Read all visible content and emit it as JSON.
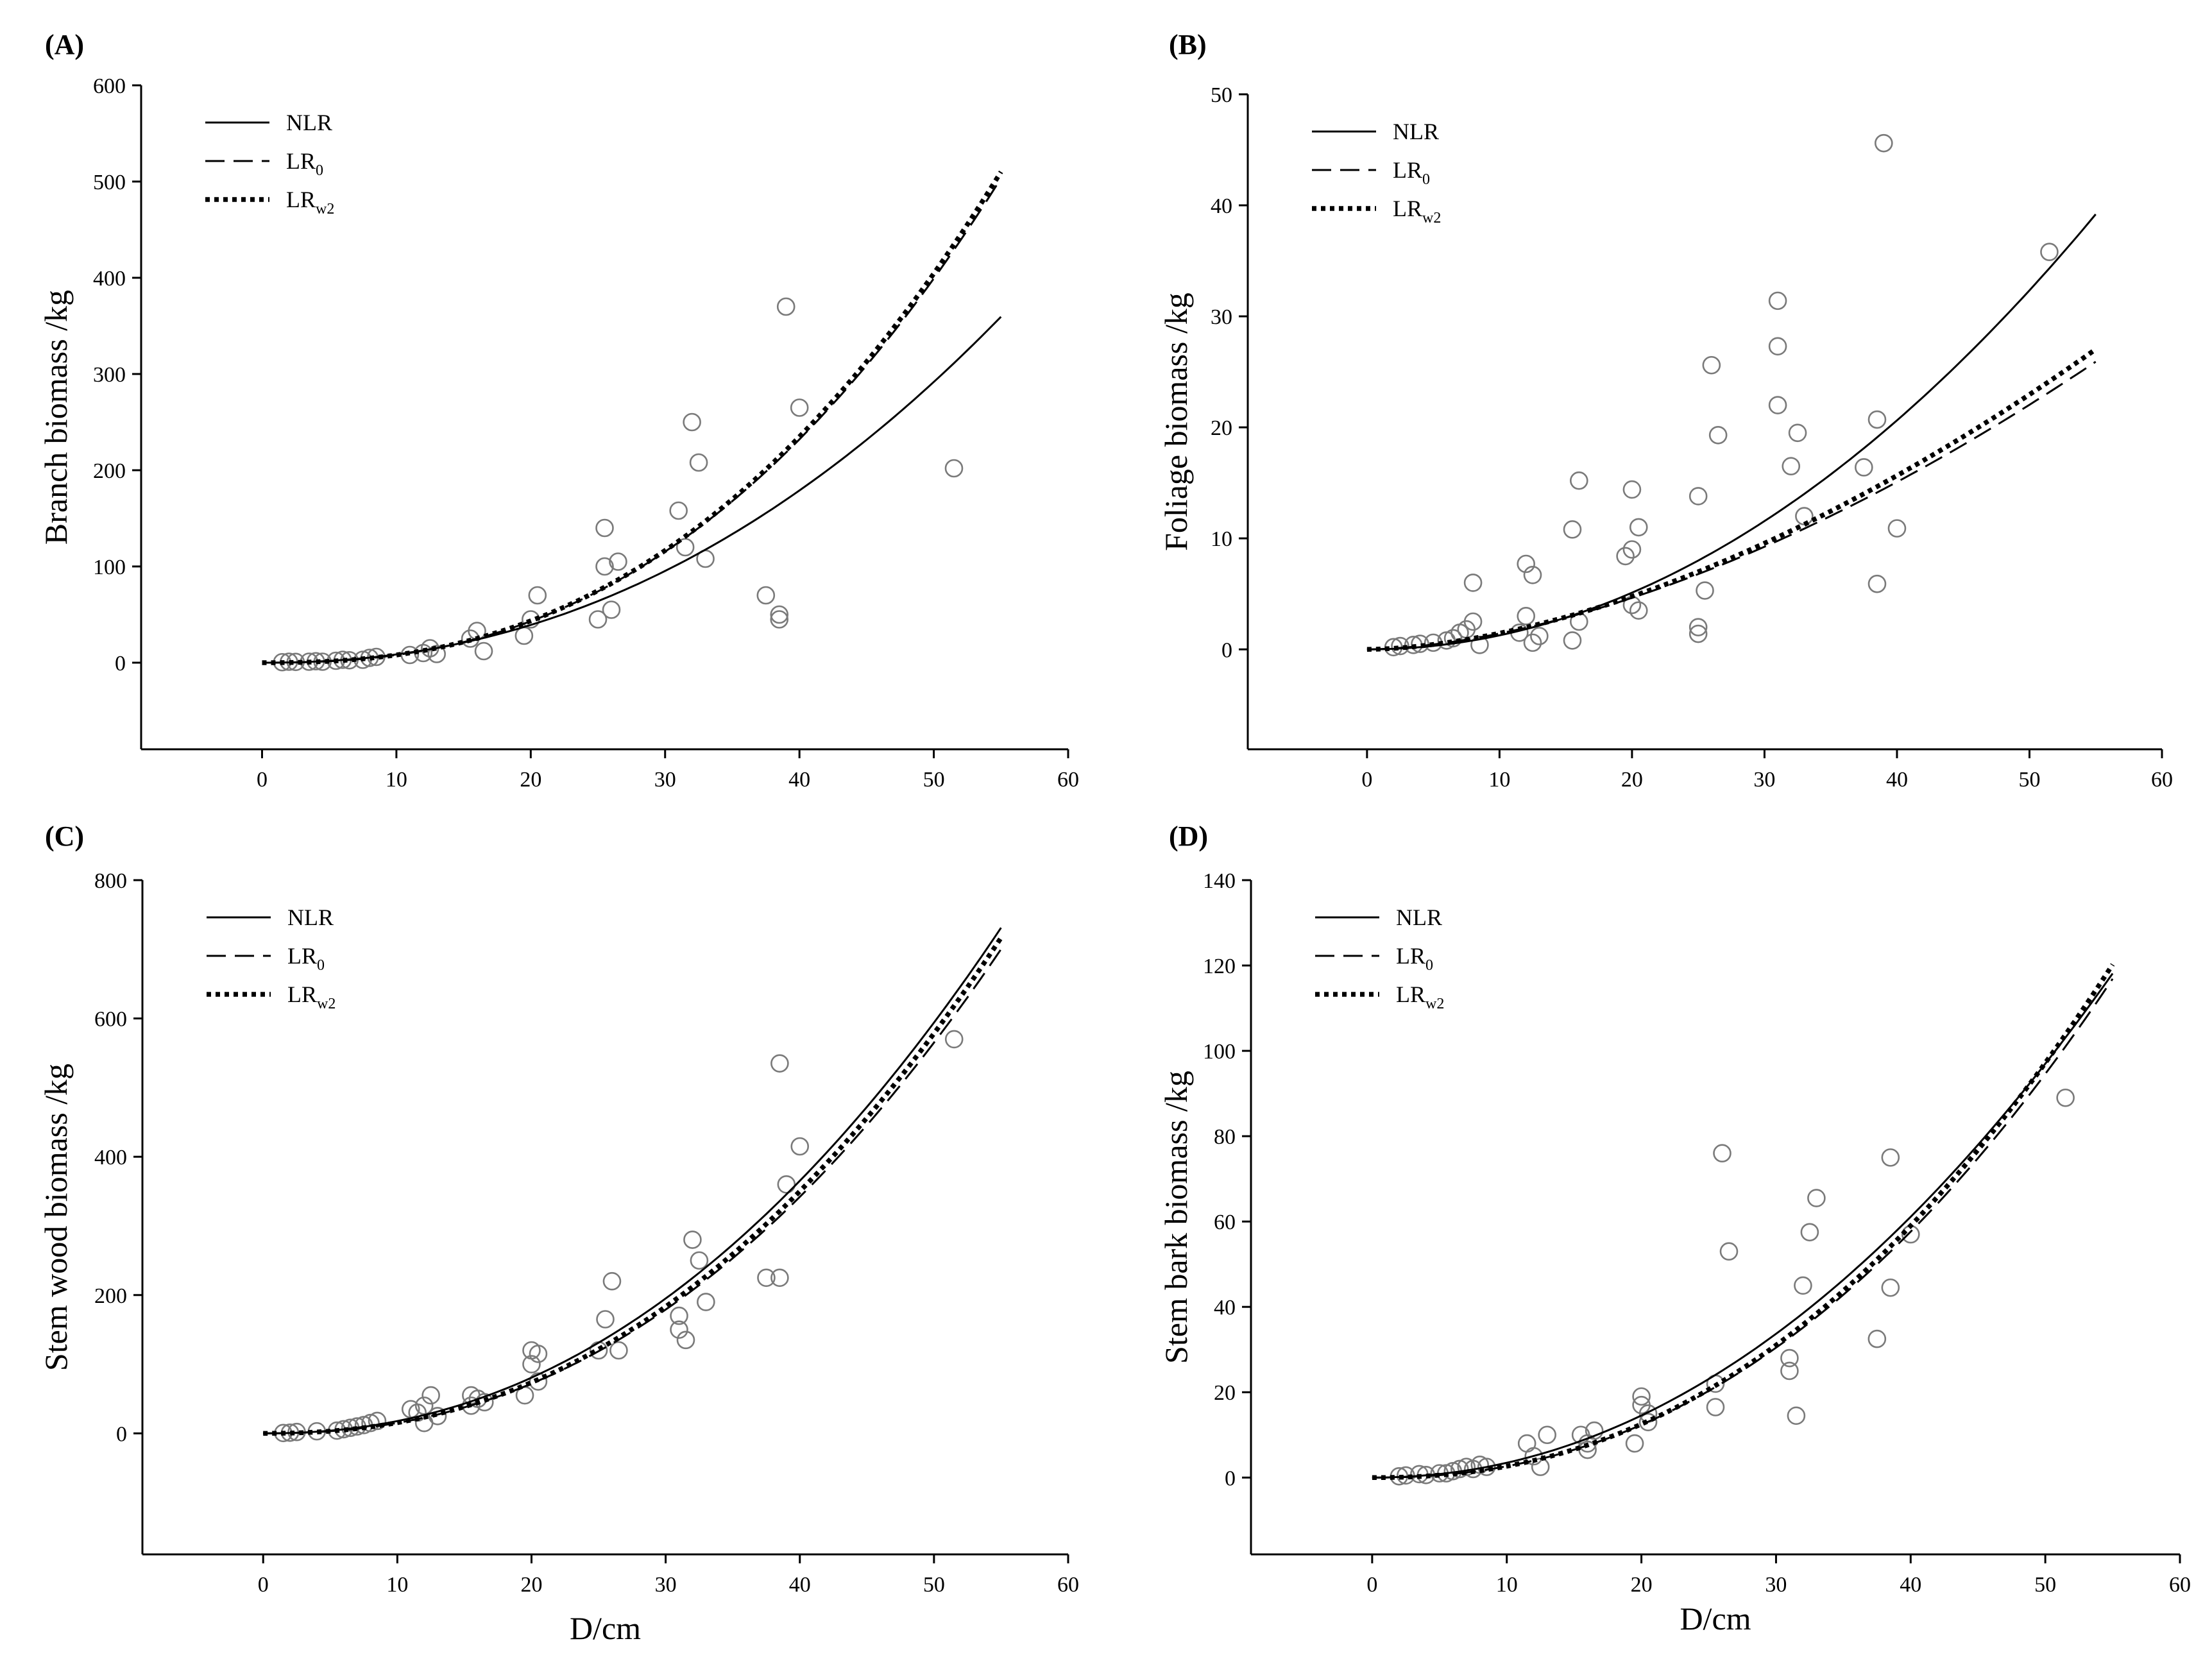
{
  "chart_data": [
    {
      "panel": "(A)",
      "type": "scatter",
      "ylabel": "Branch biomass /kg",
      "xlabel": "",
      "xlim": [
        -9,
        60
      ],
      "ylim": [
        -90,
        600
      ],
      "xticks": [
        0,
        10,
        20,
        30,
        40,
        50,
        60
      ],
      "yticks": [
        0,
        100,
        200,
        300,
        400,
        500,
        600
      ],
      "legend": {
        "position": "top-left",
        "entries": [
          {
            "key": "NLR",
            "text": "NLR",
            "sub": "",
            "style": "solid"
          },
          {
            "key": "LR0",
            "text": "LR",
            "sub": "0",
            "style": "dashed"
          },
          {
            "key": "LRw2",
            "text": "LR",
            "sub": "w2",
            "style": "dotted"
          }
        ]
      },
      "curves": {
        "NLR": {
          "a": 0.0555,
          "b": 2.19
        },
        "LR0": {
          "a": 0.0297,
          "b": 2.43
        },
        "LRw2": {
          "a": 0.0295,
          "b": 2.435
        }
      },
      "points": [
        [
          1.5,
          0.5
        ],
        [
          2,
          1
        ],
        [
          2.5,
          0.8
        ],
        [
          3.5,
          1
        ],
        [
          4,
          1.5
        ],
        [
          4.5,
          1
        ],
        [
          5.5,
          2
        ],
        [
          6,
          3
        ],
        [
          6.5,
          2.5
        ],
        [
          7.5,
          3
        ],
        [
          8,
          5
        ],
        [
          8.5,
          6
        ],
        [
          11,
          8
        ],
        [
          12,
          10
        ],
        [
          12.5,
          15
        ],
        [
          13,
          9
        ],
        [
          15.5,
          25
        ],
        [
          16,
          33
        ],
        [
          16.5,
          12
        ],
        [
          19.5,
          28
        ],
        [
          20,
          45
        ],
        [
          20.5,
          70
        ],
        [
          25,
          45
        ],
        [
          25.5,
          100
        ],
        [
          25.5,
          140
        ],
        [
          26,
          55
        ],
        [
          26.5,
          105
        ],
        [
          31,
          158
        ],
        [
          31.5,
          120
        ],
        [
          32,
          250
        ],
        [
          32.5,
          208
        ],
        [
          33,
          108
        ],
        [
          37.5,
          70
        ],
        [
          38.5,
          45
        ],
        [
          38.5,
          50
        ],
        [
          39,
          370
        ],
        [
          40,
          265
        ],
        [
          51.5,
          202
        ]
      ]
    },
    {
      "panel": "(B)",
      "type": "scatter",
      "ylabel": "Foliage biomass /kg",
      "xlabel": "",
      "xlim": [
        -9,
        60
      ],
      "ylim": [
        -9,
        50
      ],
      "xticks": [
        0,
        10,
        20,
        30,
        40,
        50,
        60
      ],
      "yticks": [
        0,
        10,
        20,
        30,
        40,
        50
      ],
      "legend": {
        "position": "top-left",
        "entries": [
          {
            "key": "NLR",
            "text": "NLR",
            "sub": "",
            "style": "solid"
          },
          {
            "key": "LR0",
            "text": "LR",
            "sub": "0",
            "style": "dashed"
          },
          {
            "key": "LRw2",
            "text": "LR",
            "sub": "w2",
            "style": "dotted"
          }
        ]
      },
      "curves": {
        "NLR": {
          "a": 0.0122,
          "b": 2.015
        },
        "LR0": {
          "a": 0.0285,
          "b": 1.7
        },
        "LRw2": {
          "a": 0.028,
          "b": 1.715
        }
      },
      "points": [
        [
          2,
          0.2
        ],
        [
          2.5,
          0.3
        ],
        [
          3.5,
          0.4
        ],
        [
          4,
          0.5
        ],
        [
          5,
          0.6
        ],
        [
          6,
          0.8
        ],
        [
          6.5,
          1
        ],
        [
          7,
          1.5
        ],
        [
          7.5,
          1.8
        ],
        [
          8,
          2.5
        ],
        [
          8,
          6
        ],
        [
          8.5,
          0.4
        ],
        [
          11.5,
          1.5
        ],
        [
          12,
          3
        ],
        [
          12,
          7.7
        ],
        [
          12.5,
          0.6
        ],
        [
          12.5,
          6.7
        ],
        [
          13,
          1.2
        ],
        [
          15.5,
          0.8
        ],
        [
          15.5,
          10.8
        ],
        [
          16,
          2.5
        ],
        [
          16,
          15.2
        ],
        [
          19.5,
          8.4
        ],
        [
          20,
          9
        ],
        [
          20,
          14.4
        ],
        [
          20,
          4
        ],
        [
          20.5,
          3.5
        ],
        [
          20.5,
          11
        ],
        [
          25,
          13.8
        ],
        [
          25,
          2
        ],
        [
          25,
          1.4
        ],
        [
          25.5,
          5.3
        ],
        [
          26,
          25.6
        ],
        [
          26.5,
          19.3
        ],
        [
          31,
          22
        ],
        [
          31,
          27.3
        ],
        [
          31,
          31.4
        ],
        [
          32,
          16.5
        ],
        [
          32.5,
          19.5
        ],
        [
          33,
          12
        ],
        [
          37.5,
          16.4
        ],
        [
          38.5,
          20.7
        ],
        [
          38.5,
          5.9
        ],
        [
          39,
          45.6
        ],
        [
          40,
          10.9
        ],
        [
          51.5,
          35.8
        ]
      ]
    },
    {
      "panel": "(C)",
      "type": "scatter",
      "ylabel": "Stem wood biomass /kg",
      "xlabel": "D/cm",
      "xlim": [
        -9,
        60
      ],
      "ylim": [
        -175,
        800
      ],
      "xticks": [
        0,
        10,
        20,
        30,
        40,
        50,
        60
      ],
      "yticks": [
        0,
        200,
        400,
        600,
        800
      ],
      "legend": {
        "position": "top-left",
        "entries": [
          {
            "key": "NLR",
            "text": "NLR",
            "sub": "",
            "style": "solid"
          },
          {
            "key": "LR0",
            "text": "LR",
            "sub": "0",
            "style": "dashed"
          },
          {
            "key": "LRw2",
            "text": "LR",
            "sub": "w2",
            "style": "dotted"
          }
        ]
      },
      "curves": {
        "NLR": {
          "a": 0.1175,
          "b": 2.18
        },
        "LR0": {
          "a": 0.085,
          "b": 2.25
        },
        "LRw2": {
          "a": 0.087,
          "b": 2.25
        }
      },
      "points": [
        [
          1.5,
          0.5
        ],
        [
          2,
          1
        ],
        [
          2.5,
          2
        ],
        [
          4,
          3
        ],
        [
          5.5,
          4
        ],
        [
          6,
          6
        ],
        [
          6.5,
          8
        ],
        [
          7,
          10
        ],
        [
          7.5,
          12
        ],
        [
          8,
          15
        ],
        [
          8.5,
          18
        ],
        [
          11,
          35
        ],
        [
          11.5,
          30
        ],
        [
          12,
          40
        ],
        [
          12,
          15
        ],
        [
          12.5,
          55
        ],
        [
          13,
          25
        ],
        [
          15.5,
          55
        ],
        [
          15.5,
          40
        ],
        [
          16,
          50
        ],
        [
          16.5,
          45
        ],
        [
          19.5,
          55
        ],
        [
          20,
          100
        ],
        [
          20,
          120
        ],
        [
          20.5,
          115
        ],
        [
          20.5,
          75
        ],
        [
          25,
          120
        ],
        [
          25.5,
          165
        ],
        [
          26,
          220
        ],
        [
          26.5,
          120
        ],
        [
          31,
          170
        ],
        [
          31,
          150
        ],
        [
          31.5,
          135
        ],
        [
          32,
          280
        ],
        [
          32.5,
          250
        ],
        [
          33,
          190
        ],
        [
          37.5,
          225
        ],
        [
          38.5,
          225
        ],
        [
          38.5,
          535
        ],
        [
          39,
          360
        ],
        [
          40,
          415
        ],
        [
          51.5,
          570
        ]
      ]
    },
    {
      "panel": "(D)",
      "type": "scatter",
      "ylabel": "Stem bark biomass /kg",
      "xlabel": "D/cm",
      "xlim": [
        -9,
        60
      ],
      "ylim": [
        -18,
        140
      ],
      "xticks": [
        0,
        10,
        20,
        30,
        40,
        50,
        60
      ],
      "yticks": [
        0,
        20,
        40,
        60,
        80,
        100,
        120,
        140
      ],
      "legend": {
        "position": "top-left",
        "entries": [
          {
            "key": "NLR",
            "text": "NLR",
            "sub": "",
            "style": "solid"
          },
          {
            "key": "LR0",
            "text": "LR",
            "sub": "0",
            "style": "dashed"
          },
          {
            "key": "LRw2",
            "text": "LR",
            "sub": "w2",
            "style": "dotted"
          }
        ]
      },
      "curves": {
        "NLR": {
          "a": 0.0295,
          "b": 2.07
        },
        "LR0": {
          "a": 0.016,
          "b": 2.22
        },
        "LRw2": {
          "a": 0.0155,
          "b": 2.235
        }
      },
      "points": [
        [
          2,
          0.3
        ],
        [
          2.5,
          0.5
        ],
        [
          3.5,
          0.8
        ],
        [
          4,
          0.6
        ],
        [
          5,
          1
        ],
        [
          5.5,
          1
        ],
        [
          6,
          1.5
        ],
        [
          6.5,
          2
        ],
        [
          7,
          2.5
        ],
        [
          7.5,
          2
        ],
        [
          8,
          3
        ],
        [
          8.5,
          2.5
        ],
        [
          11.5,
          8
        ],
        [
          12,
          5
        ],
        [
          12.5,
          2.5
        ],
        [
          13,
          10
        ],
        [
          15.5,
          10
        ],
        [
          16,
          8
        ],
        [
          16,
          6.5
        ],
        [
          16.5,
          11
        ],
        [
          19.5,
          8
        ],
        [
          20,
          17
        ],
        [
          20,
          19
        ],
        [
          20.5,
          15
        ],
        [
          20.5,
          13
        ],
        [
          25.5,
          22
        ],
        [
          25.5,
          16.5
        ],
        [
          26,
          76
        ],
        [
          26.5,
          53
        ],
        [
          31,
          28
        ],
        [
          31,
          25
        ],
        [
          31.5,
          14.5
        ],
        [
          32,
          45
        ],
        [
          32.5,
          57.5
        ],
        [
          33,
          65.5
        ],
        [
          37.5,
          32.5
        ],
        [
          38.5,
          44.5
        ],
        [
          38.5,
          75
        ],
        [
          40,
          57
        ],
        [
          51.5,
          89
        ]
      ]
    }
  ]
}
